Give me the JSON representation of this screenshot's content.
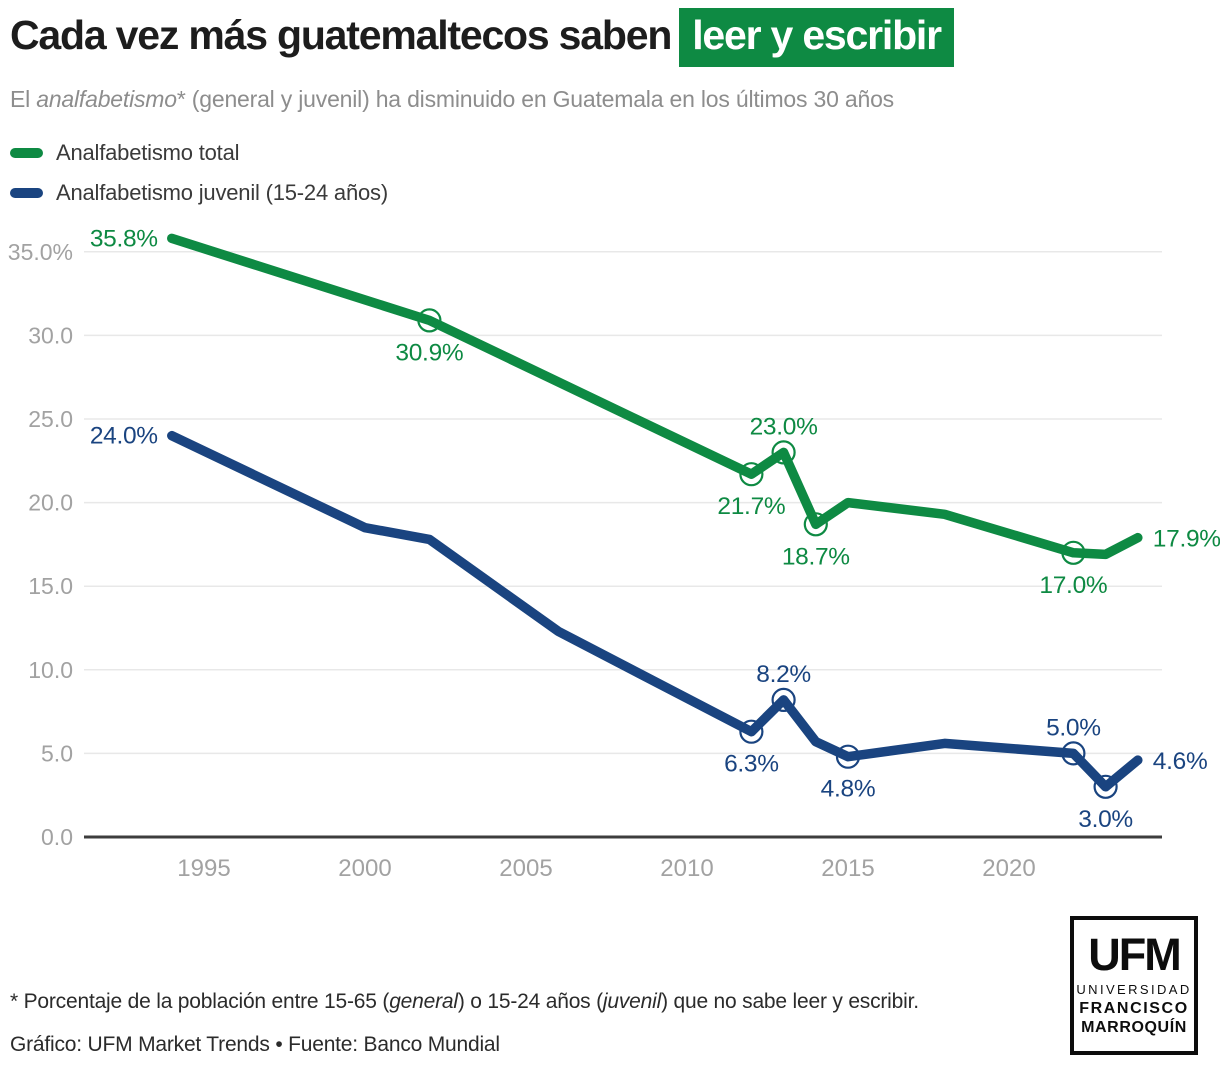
{
  "header": {
    "title_main": "Cada vez más guatemaltecos saben",
    "title_highlight": "leer y escribir",
    "highlight_bg": "#0E8A43",
    "subtitle_part1": "El ",
    "subtitle_italic": "analfabetismo",
    "subtitle_part2": "* (general y juvenil) ha disminuido en Guatemala en los últimos 30 años"
  },
  "legend": {
    "items": [
      {
        "label": "Analfabetismo total",
        "color": "#0E8A43"
      },
      {
        "label": "Analfabetismo juvenil (15-24 años)",
        "color": "#1A4480"
      }
    ]
  },
  "chart_data": {
    "type": "line",
    "title": "",
    "xlabel": "",
    "ylabel": "",
    "grid": true,
    "legend_position": "top-left",
    "ylim": [
      0,
      36
    ],
    "x_range": [
      1994,
      2024
    ],
    "y_ticks": [
      {
        "value": 35,
        "label": "35.0%"
      },
      {
        "value": 30,
        "label": "30.0"
      },
      {
        "value": 25,
        "label": "25.0"
      },
      {
        "value": 20,
        "label": "20.0"
      },
      {
        "value": 15,
        "label": "15.0"
      },
      {
        "value": 10,
        "label": "10.0"
      },
      {
        "value": 5,
        "label": "5.0"
      },
      {
        "value": 0,
        "label": "0.0"
      }
    ],
    "x_ticks": [
      {
        "year": 1995,
        "label": "1995"
      },
      {
        "year": 2000,
        "label": "2000"
      },
      {
        "year": 2005,
        "label": "2005"
      },
      {
        "year": 2010,
        "label": "2010"
      },
      {
        "year": 2015,
        "label": "2015"
      },
      {
        "year": 2020,
        "label": "2020"
      }
    ],
    "series": [
      {
        "id": "total",
        "name": "Analfabetismo total",
        "color": "#0E8A43",
        "points": [
          [
            1994,
            35.8
          ],
          [
            2002,
            30.9
          ],
          [
            2012,
            21.7
          ],
          [
            2013,
            23.0
          ],
          [
            2014,
            18.7
          ],
          [
            2015,
            20.0
          ],
          [
            2018,
            19.3
          ],
          [
            2022,
            17.0
          ],
          [
            2023,
            16.9
          ],
          [
            2024,
            17.9
          ]
        ],
        "markers": [
          2002,
          2012,
          2013,
          2014,
          2022
        ],
        "labels": [
          {
            "year": 1994,
            "text": "35.8%",
            "pos": "left"
          },
          {
            "year": 2002,
            "text": "30.9%",
            "pos": "below"
          },
          {
            "year": 2012,
            "text": "21.7%",
            "pos": "below"
          },
          {
            "year": 2013,
            "text": "23.0%",
            "pos": "above"
          },
          {
            "year": 2014,
            "text": "18.7%",
            "pos": "below"
          },
          {
            "year": 2022,
            "text": "17.0%",
            "pos": "below"
          },
          {
            "year": 2024,
            "text": "17.9%",
            "pos": "right"
          }
        ]
      },
      {
        "id": "juvenil",
        "name": "Analfabetismo juvenil (15-24 años)",
        "color": "#1A4480",
        "points": [
          [
            1994,
            24.0
          ],
          [
            2000,
            18.5
          ],
          [
            2002,
            17.8
          ],
          [
            2006,
            12.3
          ],
          [
            2012,
            6.3
          ],
          [
            2013,
            8.2
          ],
          [
            2014,
            5.7
          ],
          [
            2015,
            4.8
          ],
          [
            2018,
            5.6
          ],
          [
            2022,
            5.0
          ],
          [
            2023,
            3.0
          ],
          [
            2024,
            4.6
          ]
        ],
        "markers": [
          2012,
          2013,
          2015,
          2022,
          2023
        ],
        "labels": [
          {
            "year": 1994,
            "text": "24.0%",
            "pos": "left"
          },
          {
            "year": 2012,
            "text": "6.3%",
            "pos": "below"
          },
          {
            "year": 2013,
            "text": "8.2%",
            "pos": "above"
          },
          {
            "year": 2015,
            "text": "4.8%",
            "pos": "below"
          },
          {
            "year": 2022,
            "text": "5.0%",
            "pos": "above"
          },
          {
            "year": 2023,
            "text": "3.0%",
            "pos": "below"
          },
          {
            "year": 2024,
            "text": "4.6%",
            "pos": "right"
          }
        ]
      }
    ]
  },
  "footnote": {
    "part1": "* Porcentaje de la población entre 15-65 (",
    "italic1": "general",
    "part2": ") o 15-24 años (",
    "italic2": "juvenil",
    "part3": ") que no sabe leer y escribir."
  },
  "credit": "Gráfico: UFM Market Trends • Fuente: Banco Mundial",
  "logo": {
    "line1": "UFM",
    "line2": "UNIVERSIDAD",
    "line3": "FRANCISCO",
    "line4": "MARROQUÍN"
  }
}
